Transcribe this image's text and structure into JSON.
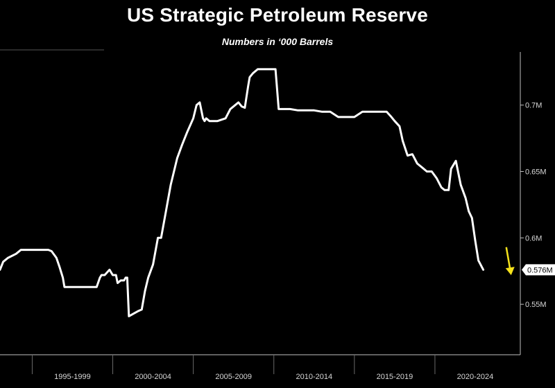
{
  "chart_data": {
    "type": "line",
    "title": "US Strategic Petroleum Reserve",
    "subtitle": "Numbers in ‘000 Barrels",
    "xlabel": "",
    "ylabel": "",
    "xlim": [
      1993.0,
      2025.3
    ],
    "ylim": [
      0.512,
      0.74
    ],
    "y_ticks": [
      {
        "value": 0.55,
        "label": "0.55M"
      },
      {
        "value": 0.6,
        "label": "0.6M"
      },
      {
        "value": 0.65,
        "label": "0.65M"
      },
      {
        "value": 0.7,
        "label": "0.7M"
      }
    ],
    "x_ticks": [
      {
        "label": "1995-1999",
        "start": 1995,
        "end": 2000
      },
      {
        "label": "2000-2004",
        "start": 2000,
        "end": 2005
      },
      {
        "label": "2005-2009",
        "start": 2005,
        "end": 2010
      },
      {
        "label": "2010-2014",
        "start": 2010,
        "end": 2015
      },
      {
        "label": "2015-2019",
        "start": 2015,
        "end": 2020
      },
      {
        "label": "2020-2024",
        "start": 2020,
        "end": 2025
      }
    ],
    "last_value_label": "0.576M",
    "grid": false,
    "series": [
      {
        "color": "#ffffff",
        "x": [
          1993.0,
          1993.2,
          1993.5,
          1994.0,
          1994.3,
          1995.0,
          1996.0,
          1996.2,
          1996.5,
          1996.7,
          1996.9,
          1997.0,
          1997.2,
          1997.5,
          1998.0,
          1998.5,
          1999.0,
          1999.2,
          1999.3,
          1999.5,
          1999.8,
          2000.0,
          2000.2,
          2000.3,
          2000.5,
          2000.7,
          2000.8,
          2000.9,
          2001.0,
          2001.3,
          2001.6,
          2001.8,
          2002.0,
          2002.2,
          2002.5,
          2002.8,
          2003.0,
          2003.3,
          2003.6,
          2004.0,
          2004.3,
          2004.6,
          2005.0,
          2005.2,
          2005.4,
          2005.6,
          2005.7,
          2005.8,
          2006.0,
          2006.5,
          2007.0,
          2007.3,
          2007.5,
          2007.8,
          2008.0,
          2008.2,
          2008.4,
          2008.5,
          2008.7,
          2009.0,
          2009.3,
          2009.5,
          2010.0,
          2010.1,
          2010.3,
          2011.0,
          2011.5,
          2012.0,
          2012.5,
          2013.0,
          2013.5,
          2014.0,
          2014.5,
          2015.0,
          2015.5,
          2016.0,
          2016.4,
          2016.7,
          2017.0,
          2017.3,
          2017.5,
          2017.8,
          2018.0,
          2018.3,
          2018.6,
          2018.9,
          2019.2,
          2019.5,
          2019.8,
          2020.1,
          2020.4,
          2020.6,
          2020.7,
          2020.85,
          2021.0,
          2021.3,
          2021.6,
          2021.9,
          2022.1,
          2022.3,
          2022.5,
          2022.7,
          2023.0
        ],
        "values": [
          0.576,
          0.582,
          0.585,
          0.588,
          0.591,
          0.591,
          0.591,
          0.59,
          0.585,
          0.578,
          0.57,
          0.563,
          0.563,
          0.563,
          0.563,
          0.563,
          0.563,
          0.57,
          0.572,
          0.572,
          0.576,
          0.572,
          0.572,
          0.566,
          0.568,
          0.568,
          0.57,
          0.57,
          0.541,
          0.543,
          0.545,
          0.546,
          0.56,
          0.57,
          0.58,
          0.6,
          0.6,
          0.62,
          0.64,
          0.66,
          0.67,
          0.679,
          0.69,
          0.7,
          0.702,
          0.69,
          0.688,
          0.69,
          0.688,
          0.688,
          0.69,
          0.697,
          0.699,
          0.702,
          0.699,
          0.698,
          0.714,
          0.721,
          0.724,
          0.727,
          0.727,
          0.727,
          0.727,
          0.727,
          0.697,
          0.697,
          0.696,
          0.696,
          0.696,
          0.695,
          0.695,
          0.691,
          0.691,
          0.691,
          0.695,
          0.695,
          0.695,
          0.695,
          0.695,
          0.691,
          0.688,
          0.684,
          0.673,
          0.662,
          0.663,
          0.656,
          0.653,
          0.65,
          0.65,
          0.645,
          0.638,
          0.636,
          0.636,
          0.636,
          0.652,
          0.658,
          0.64,
          0.63,
          0.62,
          0.615,
          0.598,
          0.583,
          0.576
        ]
      }
    ],
    "annotation": {
      "type": "arrow",
      "direction": "down",
      "color": "#f5e21b"
    }
  }
}
